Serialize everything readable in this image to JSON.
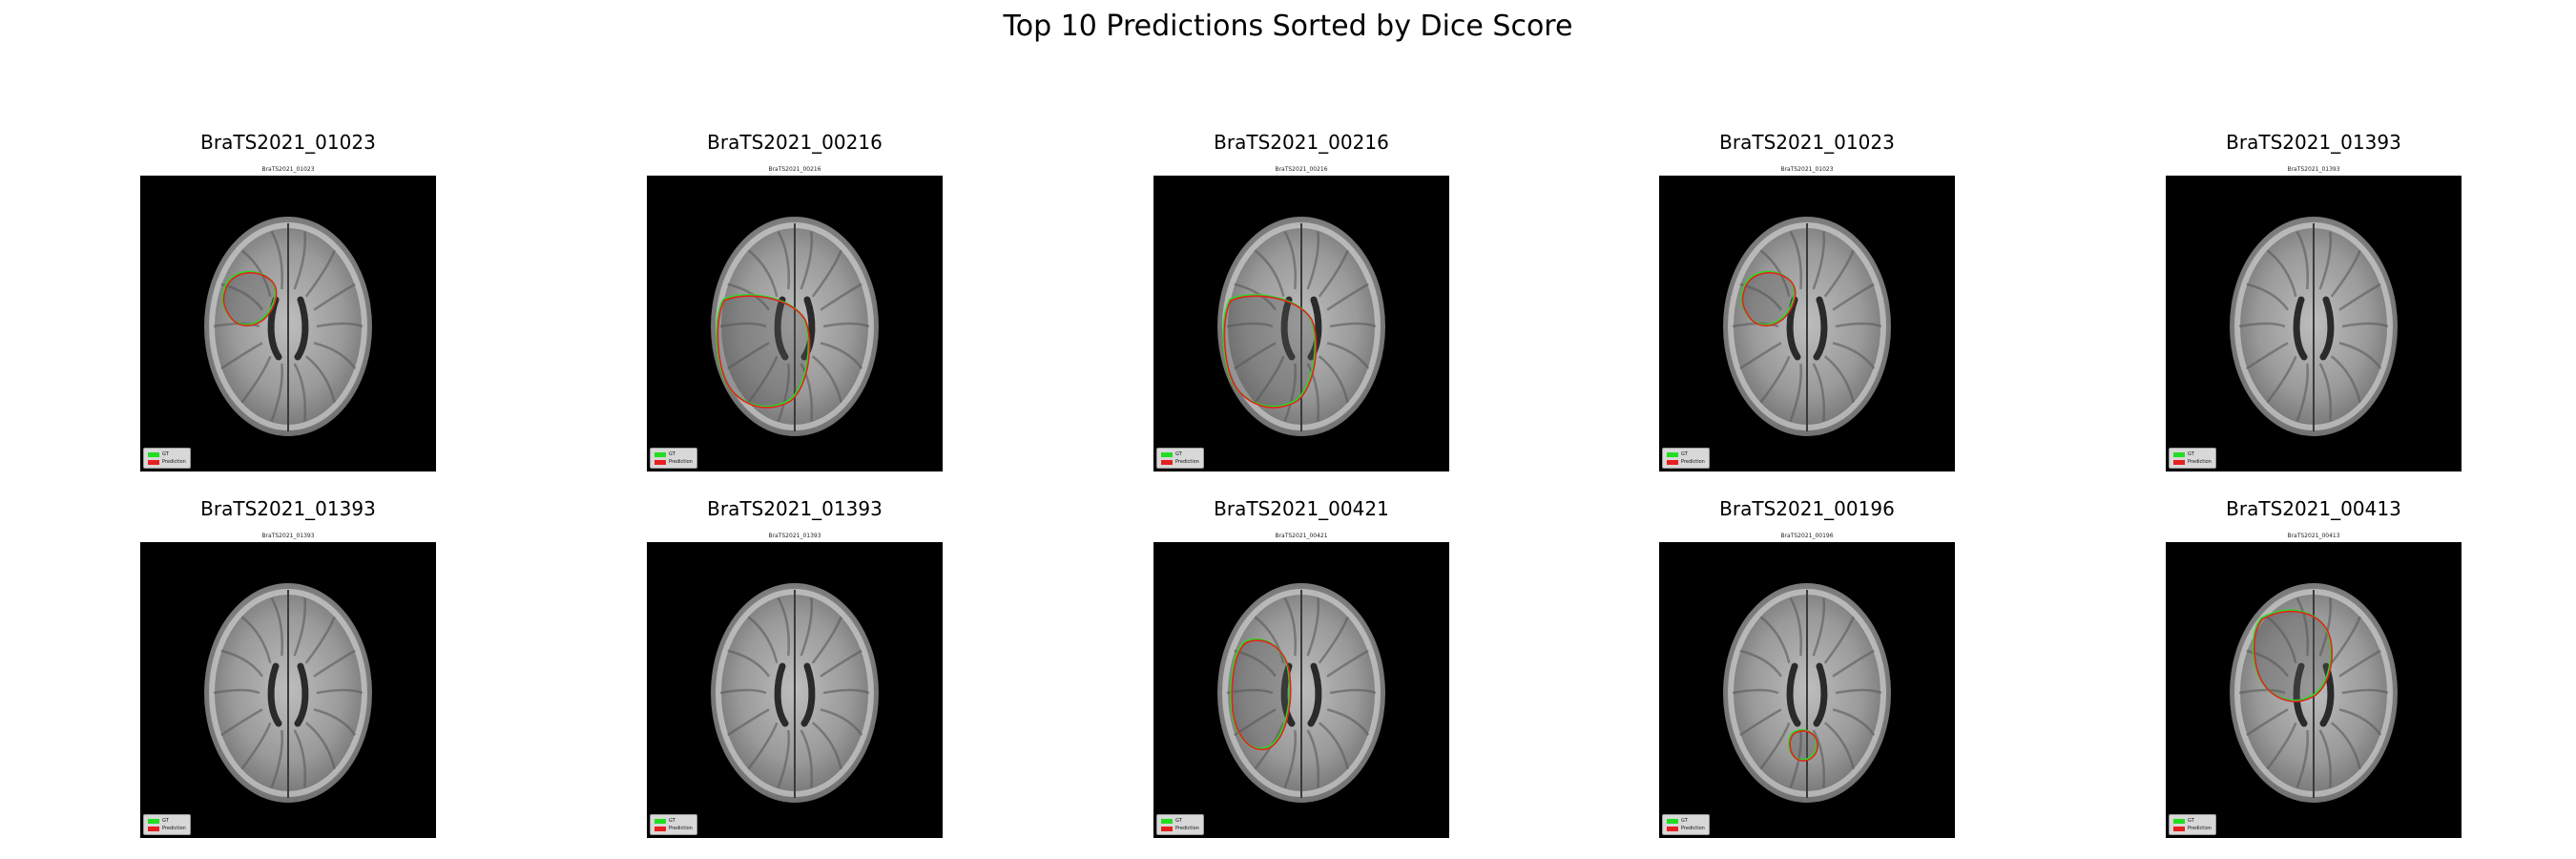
{
  "figure": {
    "title": "Top 10 Predictions Sorted by Dice Score"
  },
  "legend": {
    "gt_label": "GT",
    "gt_color": "#22dd22",
    "pred_label": "Prediction",
    "pred_color": "#e62020"
  },
  "panels": [
    {
      "title": "BraTS2021_01023",
      "subtitle": "BraTS2021_01023",
      "lesion": "small"
    },
    {
      "title": "BraTS2021_00216",
      "subtitle": "BraTS2021_00216",
      "lesion": "large"
    },
    {
      "title": "BraTS2021_00216",
      "subtitle": "BraTS2021_00216",
      "lesion": "large"
    },
    {
      "title": "BraTS2021_01023",
      "subtitle": "BraTS2021_01023",
      "lesion": "small"
    },
    {
      "title": "BraTS2021_01393",
      "subtitle": "BraTS2021_01393",
      "lesion": "none"
    },
    {
      "title": "BraTS2021_01393",
      "subtitle": "BraTS2021_01393",
      "lesion": "none"
    },
    {
      "title": "BraTS2021_01393",
      "subtitle": "BraTS2021_01393",
      "lesion": "none"
    },
    {
      "title": "BraTS2021_00421",
      "subtitle": "BraTS2021_00421",
      "lesion": "left"
    },
    {
      "title": "BraTS2021_00196",
      "subtitle": "BraTS2021_00196",
      "lesion": "tiny"
    },
    {
      "title": "BraTS2021_00413",
      "subtitle": "BraTS2021_00413",
      "lesion": "upper"
    }
  ]
}
